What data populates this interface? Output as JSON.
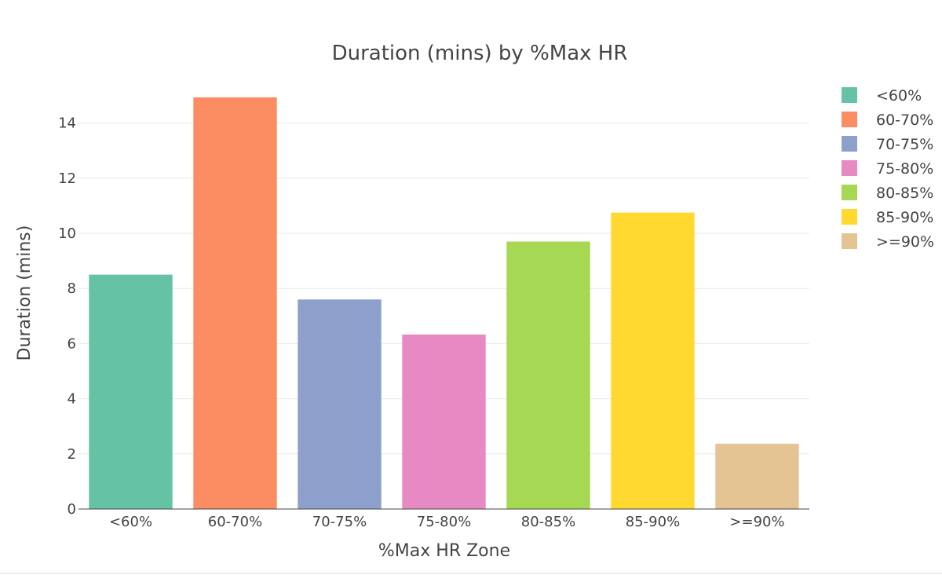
{
  "chart_data": {
    "type": "bar",
    "title": "Duration (mins) by %Max HR",
    "xlabel": "%Max HR Zone",
    "ylabel": "Duration (mins)",
    "categories": [
      "<60%",
      "60-70%",
      "70-75%",
      "75-80%",
      "80-85%",
      "85-90%",
      ">=90%"
    ],
    "values": [
      8.5,
      14.93,
      7.6,
      6.33,
      9.7,
      10.75,
      2.37
    ],
    "colors": [
      "#66c2a5",
      "#fc8d62",
      "#8da0cb",
      "#e78ac3",
      "#a6d854",
      "#ffd92f",
      "#e5c494"
    ],
    "ylim": [
      0,
      15.4
    ],
    "yticks": [
      0,
      2,
      4,
      6,
      8,
      10,
      12,
      14
    ],
    "grid": true,
    "legend": {
      "position": "top-right",
      "entries": [
        "<60%",
        "60-70%",
        "70-75%",
        "75-80%",
        "80-85%",
        "85-90%",
        ">=90%"
      ]
    }
  }
}
